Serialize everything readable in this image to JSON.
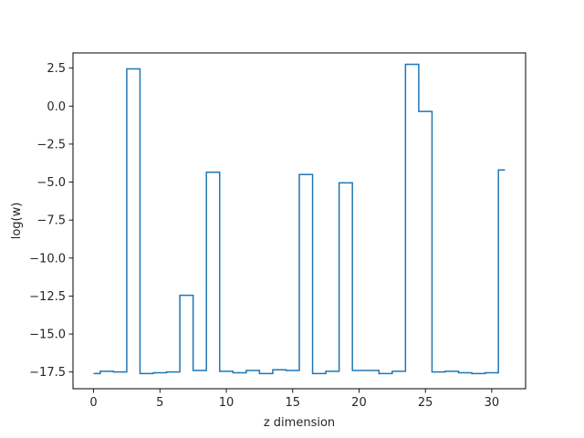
{
  "chart_data": {
    "type": "line",
    "drawstyle": "steps-mid",
    "title": "",
    "xlabel": "z dimension",
    "ylabel": "log(w)",
    "xlim": [
      -1.55,
      32.55
    ],
    "ylim": [
      -18.6,
      3.5
    ],
    "grid": false,
    "legend": "none",
    "line_color": "#1f77b4",
    "xticks": [
      0,
      5,
      10,
      15,
      20,
      25,
      30
    ],
    "xtick_labels": [
      "0",
      "5",
      "10",
      "15",
      "20",
      "25",
      "30"
    ],
    "yticks": [
      2.5,
      0.0,
      -2.5,
      -5.0,
      -7.5,
      -10.0,
      -12.5,
      -15.0,
      -17.5
    ],
    "ytick_labels": [
      "2.5",
      "0.0",
      "−2.5",
      "−5.0",
      "−7.5",
      "−10.0",
      "−12.5",
      "−15.0",
      "−17.5"
    ],
    "series": [
      {
        "x": [
          0,
          1,
          2,
          3,
          4,
          5,
          6,
          7,
          8,
          9,
          10,
          11,
          12,
          13,
          14,
          15,
          16,
          17,
          18,
          19,
          20,
          21,
          22,
          23,
          24,
          25,
          26,
          27,
          28,
          29,
          30,
          31
        ],
        "values": [
          -17.6,
          -17.45,
          -17.5,
          2.45,
          -17.6,
          -17.55,
          -17.5,
          -12.45,
          -17.4,
          -4.35,
          -17.45,
          -17.55,
          -17.4,
          -17.6,
          -17.35,
          -17.4,
          -4.5,
          -17.6,
          -17.45,
          -5.05,
          -17.4,
          -17.4,
          -17.6,
          -17.45,
          2.75,
          -0.35,
          -17.5,
          -17.45,
          -17.55,
          -17.6,
          -17.55,
          -4.2
        ]
      }
    ]
  }
}
